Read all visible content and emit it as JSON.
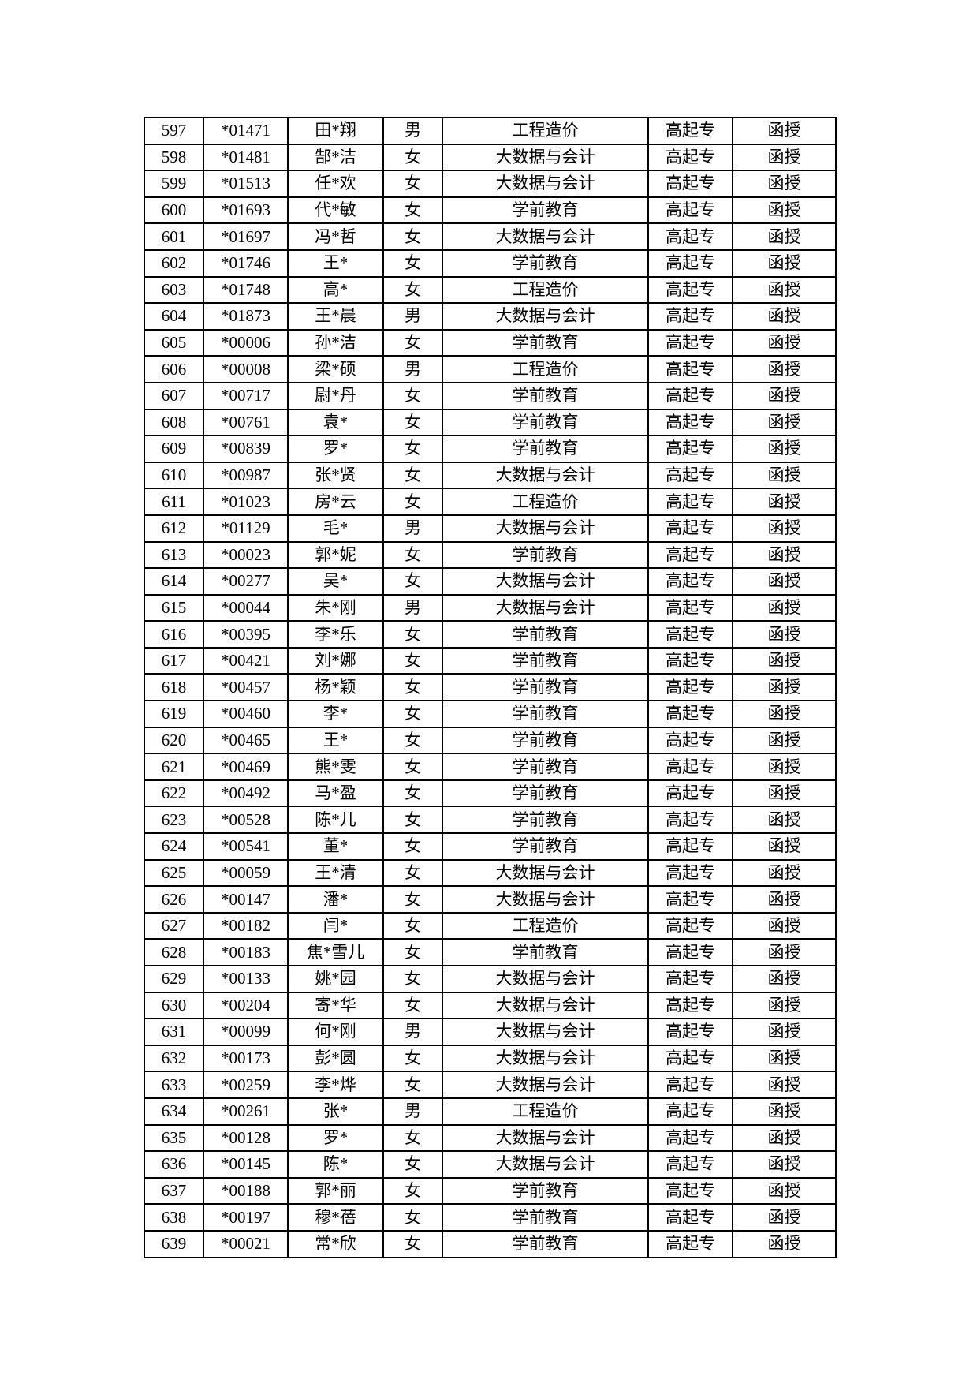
{
  "page": {
    "background_color": "#ffffff",
    "text_color": "#000000",
    "table_border_color": "#000000"
  },
  "table": {
    "rows": [
      [
        "597",
        "*01471",
        "田*翔",
        "男",
        "工程造价",
        "高起专",
        "函授"
      ],
      [
        "598",
        "*01481",
        "郜*洁",
        "女",
        "大数据与会计",
        "高起专",
        "函授"
      ],
      [
        "599",
        "*01513",
        "任*欢",
        "女",
        "大数据与会计",
        "高起专",
        "函授"
      ],
      [
        "600",
        "*01693",
        "代*敏",
        "女",
        "学前教育",
        "高起专",
        "函授"
      ],
      [
        "601",
        "*01697",
        "冯*哲",
        "女",
        "大数据与会计",
        "高起专",
        "函授"
      ],
      [
        "602",
        "*01746",
        "王*",
        "女",
        "学前教育",
        "高起专",
        "函授"
      ],
      [
        "603",
        "*01748",
        "高*",
        "女",
        "工程造价",
        "高起专",
        "函授"
      ],
      [
        "604",
        "*01873",
        "王*晨",
        "男",
        "大数据与会计",
        "高起专",
        "函授"
      ],
      [
        "605",
        "*00006",
        "孙*洁",
        "女",
        "学前教育",
        "高起专",
        "函授"
      ],
      [
        "606",
        "*00008",
        "梁*硕",
        "男",
        "工程造价",
        "高起专",
        "函授"
      ],
      [
        "607",
        "*00717",
        "尉*丹",
        "女",
        "学前教育",
        "高起专",
        "函授"
      ],
      [
        "608",
        "*00761",
        "袁*",
        "女",
        "学前教育",
        "高起专",
        "函授"
      ],
      [
        "609",
        "*00839",
        "罗*",
        "女",
        "学前教育",
        "高起专",
        "函授"
      ],
      [
        "610",
        "*00987",
        "张*贤",
        "女",
        "大数据与会计",
        "高起专",
        "函授"
      ],
      [
        "611",
        "*01023",
        "房*云",
        "女",
        "工程造价",
        "高起专",
        "函授"
      ],
      [
        "612",
        "*01129",
        "毛*",
        "男",
        "大数据与会计",
        "高起专",
        "函授"
      ],
      [
        "613",
        "*00023",
        "郭*妮",
        "女",
        "学前教育",
        "高起专",
        "函授"
      ],
      [
        "614",
        "*00277",
        "吴*",
        "女",
        "大数据与会计",
        "高起专",
        "函授"
      ],
      [
        "615",
        "*00044",
        "朱*刚",
        "男",
        "大数据与会计",
        "高起专",
        "函授"
      ],
      [
        "616",
        "*00395",
        "李*乐",
        "女",
        "学前教育",
        "高起专",
        "函授"
      ],
      [
        "617",
        "*00421",
        "刘*娜",
        "女",
        "学前教育",
        "高起专",
        "函授"
      ],
      [
        "618",
        "*00457",
        "杨*颖",
        "女",
        "学前教育",
        "高起专",
        "函授"
      ],
      [
        "619",
        "*00460",
        "李*",
        "女",
        "学前教育",
        "高起专",
        "函授"
      ],
      [
        "620",
        "*00465",
        "王*",
        "女",
        "学前教育",
        "高起专",
        "函授"
      ],
      [
        "621",
        "*00469",
        "熊*雯",
        "女",
        "学前教育",
        "高起专",
        "函授"
      ],
      [
        "622",
        "*00492",
        "马*盈",
        "女",
        "学前教育",
        "高起专",
        "函授"
      ],
      [
        "623",
        "*00528",
        "陈*儿",
        "女",
        "学前教育",
        "高起专",
        "函授"
      ],
      [
        "624",
        "*00541",
        "董*",
        "女",
        "学前教育",
        "高起专",
        "函授"
      ],
      [
        "625",
        "*00059",
        "王*清",
        "女",
        "大数据与会计",
        "高起专",
        "函授"
      ],
      [
        "626",
        "*00147",
        "潘*",
        "女",
        "大数据与会计",
        "高起专",
        "函授"
      ],
      [
        "627",
        "*00182",
        "闫*",
        "女",
        "工程造价",
        "高起专",
        "函授"
      ],
      [
        "628",
        "*00183",
        "焦*雪儿",
        "女",
        "学前教育",
        "高起专",
        "函授"
      ],
      [
        "629",
        "*00133",
        "姚*园",
        "女",
        "大数据与会计",
        "高起专",
        "函授"
      ],
      [
        "630",
        "*00204",
        "寄*华",
        "女",
        "大数据与会计",
        "高起专",
        "函授"
      ],
      [
        "631",
        "*00099",
        "何*刚",
        "男",
        "大数据与会计",
        "高起专",
        "函授"
      ],
      [
        "632",
        "*00173",
        "彭*圆",
        "女",
        "大数据与会计",
        "高起专",
        "函授"
      ],
      [
        "633",
        "*00259",
        "李*烨",
        "女",
        "大数据与会计",
        "高起专",
        "函授"
      ],
      [
        "634",
        "*00261",
        "张*",
        "男",
        "工程造价",
        "高起专",
        "函授"
      ],
      [
        "635",
        "*00128",
        "罗*",
        "女",
        "大数据与会计",
        "高起专",
        "函授"
      ],
      [
        "636",
        "*00145",
        "陈*",
        "女",
        "大数据与会计",
        "高起专",
        "函授"
      ],
      [
        "637",
        "*00188",
        "郭*丽",
        "女",
        "学前教育",
        "高起专",
        "函授"
      ],
      [
        "638",
        "*00197",
        "穆*蓓",
        "女",
        "学前教育",
        "高起专",
        "函授"
      ],
      [
        "639",
        "*00021",
        "常*欣",
        "女",
        "学前教育",
        "高起专",
        "函授"
      ]
    ]
  }
}
